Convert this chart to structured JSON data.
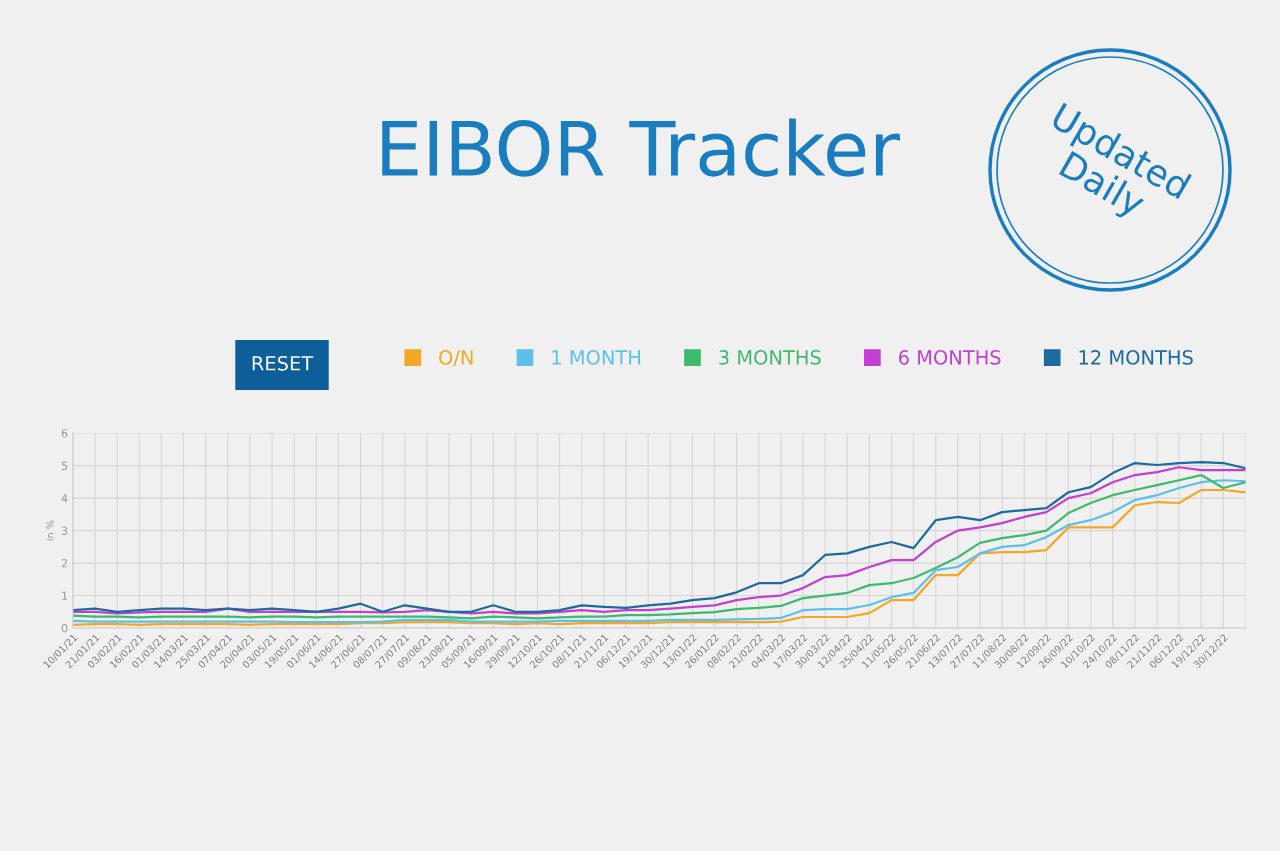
{
  "chart_data": {
    "type": "line",
    "title": "EIBOR Tracker",
    "ylabel": "in %",
    "annotations": [
      "Updated Daily",
      "RESET"
    ],
    "categories": [
      "10/01/21",
      "21/01/21",
      "03/02/21",
      "16/02/21",
      "01/03/21",
      "14/03/21",
      "25/03/21",
      "07/04/21",
      "20/04/21",
      "03/05/21",
      "19/05/21",
      "01/06/21",
      "14/06/21",
      "27/06/21",
      "08/07/21",
      "27/07/21",
      "09/08/21",
      "23/08/21",
      "05/09/21",
      "16/09/21",
      "29/09/21",
      "12/10/21",
      "26/10/21",
      "08/11/21",
      "21/11/21",
      "06/12/21",
      "19/12/21",
      "30/12/21",
      "13/01/22",
      "26/01/22",
      "08/02/22",
      "21/02/22",
      "04/03/22",
      "17/03/22",
      "30/03/22",
      "12/04/22",
      "25/04/22",
      "11/05/22",
      "26/05/22",
      "21/06/22",
      "13/07/22",
      "27/07/22",
      "11/08/22",
      "30/08/22",
      "12/09/22",
      "26/09/22",
      "10/10/22",
      "24/10/22",
      "08/11/22",
      "21/11/22",
      "06/12/22",
      "19/12/22",
      "30/12/22",
      null
    ],
    "series": [
      {
        "name": "O/N",
        "color": "#f5a623",
        "values": [
          0.1,
          0.12,
          0.12,
          0.1,
          0.12,
          0.12,
          0.12,
          0.12,
          0.1,
          0.12,
          0.12,
          0.12,
          0.12,
          0.15,
          0.15,
          0.18,
          0.18,
          0.18,
          0.15,
          0.15,
          0.12,
          0.15,
          0.12,
          0.15,
          0.15,
          0.15,
          0.15,
          0.18,
          0.18,
          0.18,
          0.18,
          0.18,
          0.2,
          0.34,
          0.34,
          0.34,
          0.46,
          0.86,
          0.86,
          1.63,
          1.63,
          2.3,
          2.34,
          2.34,
          2.4,
          3.1,
          3.1,
          3.1,
          3.78,
          3.88,
          3.85,
          4.25,
          4.25,
          4.18
        ]
      },
      {
        "name": "1 MONTH",
        "color": "#5bc0eb",
        "values": [
          0.22,
          0.2,
          0.2,
          0.2,
          0.2,
          0.2,
          0.2,
          0.2,
          0.2,
          0.2,
          0.18,
          0.18,
          0.18,
          0.18,
          0.2,
          0.25,
          0.25,
          0.25,
          0.2,
          0.2,
          0.2,
          0.2,
          0.22,
          0.22,
          0.22,
          0.22,
          0.22,
          0.25,
          0.25,
          0.25,
          0.27,
          0.28,
          0.31,
          0.55,
          0.58,
          0.58,
          0.71,
          0.95,
          1.08,
          1.78,
          1.88,
          2.3,
          2.5,
          2.55,
          2.8,
          3.17,
          3.32,
          3.57,
          3.94,
          4.09,
          4.31,
          4.49,
          4.55,
          4.52
        ]
      },
      {
        "name": "3 MONTHS",
        "color": "#3dbb6d",
        "values": [
          0.38,
          0.35,
          0.35,
          0.33,
          0.35,
          0.35,
          0.35,
          0.35,
          0.33,
          0.35,
          0.35,
          0.33,
          0.35,
          0.35,
          0.35,
          0.35,
          0.35,
          0.33,
          0.3,
          0.35,
          0.33,
          0.3,
          0.33,
          0.35,
          0.35,
          0.4,
          0.4,
          0.42,
          0.46,
          0.49,
          0.58,
          0.62,
          0.68,
          0.92,
          1.0,
          1.08,
          1.32,
          1.38,
          1.54,
          1.85,
          2.18,
          2.62,
          2.77,
          2.86,
          3.0,
          3.54,
          3.85,
          4.09,
          4.25,
          4.4,
          4.55,
          4.71,
          4.31,
          4.49
        ]
      },
      {
        "name": "6 MONTHS",
        "color": "#c23fd4",
        "values": [
          0.5,
          0.5,
          0.45,
          0.48,
          0.5,
          0.5,
          0.5,
          0.6,
          0.5,
          0.5,
          0.5,
          0.5,
          0.5,
          0.5,
          0.48,
          0.5,
          0.55,
          0.5,
          0.45,
          0.5,
          0.45,
          0.45,
          0.5,
          0.55,
          0.5,
          0.55,
          0.55,
          0.6,
          0.65,
          0.7,
          0.86,
          0.95,
          1.0,
          1.23,
          1.57,
          1.63,
          1.88,
          2.09,
          2.09,
          2.65,
          3.0,
          3.1,
          3.23,
          3.42,
          3.57,
          4.0,
          4.15,
          4.49,
          4.71,
          4.8,
          4.95,
          4.86,
          4.86,
          4.86
        ]
      },
      {
        "name": "12 MONTHS",
        "color": "#1d6a9e",
        "values": [
          0.55,
          0.6,
          0.5,
          0.55,
          0.6,
          0.6,
          0.55,
          0.6,
          0.55,
          0.6,
          0.55,
          0.5,
          0.6,
          0.75,
          0.5,
          0.7,
          0.6,
          0.5,
          0.5,
          0.7,
          0.5,
          0.5,
          0.55,
          0.7,
          0.65,
          0.62,
          0.7,
          0.75,
          0.86,
          0.92,
          1.1,
          1.38,
          1.38,
          1.63,
          2.25,
          2.3,
          2.5,
          2.65,
          2.46,
          3.32,
          3.42,
          3.32,
          3.57,
          3.63,
          3.69,
          4.18,
          4.34,
          4.77,
          5.08,
          5.02,
          5.08,
          5.11,
          5.08,
          4.92
        ]
      }
    ],
    "ylim": [
      0,
      6
    ],
    "yticks": [
      0,
      1,
      2,
      3,
      4,
      5,
      6
    ],
    "grid": true,
    "legend": "top",
    "marker": "none",
    "line_style": "solid"
  }
}
